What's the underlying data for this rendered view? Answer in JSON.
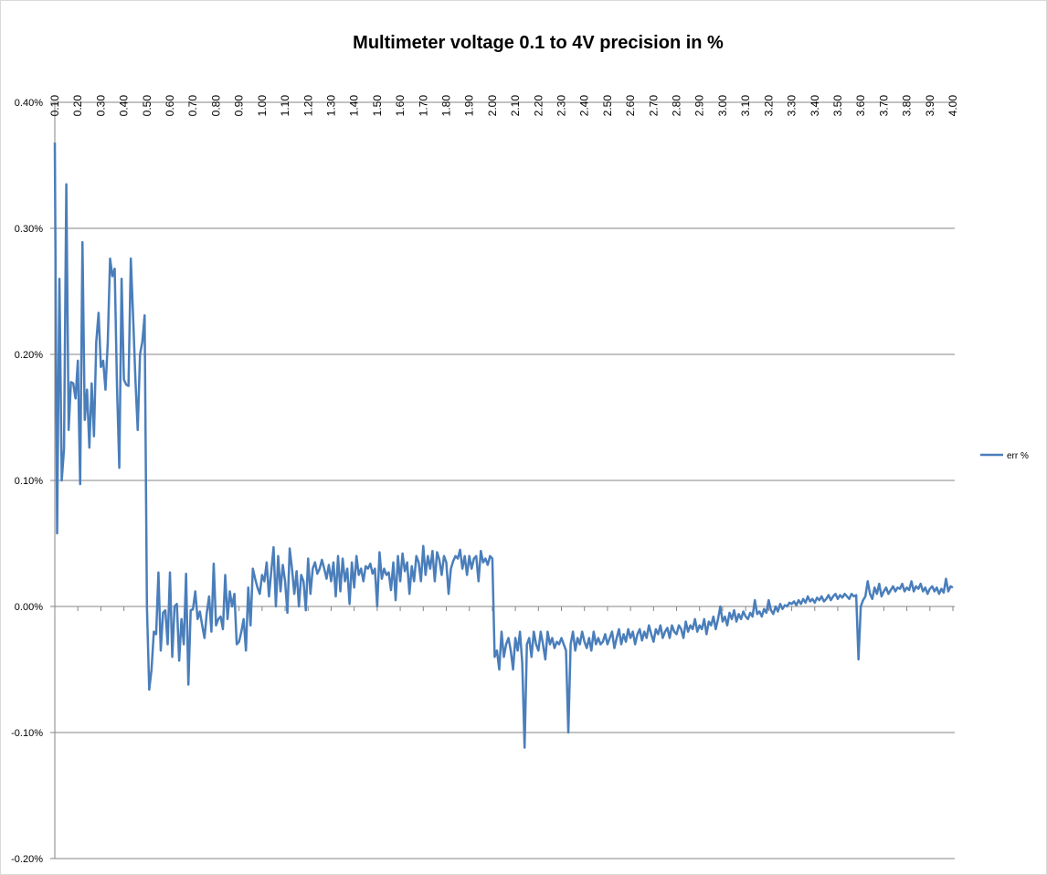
{
  "chart_data": {
    "type": "line",
    "title": "Multimeter voltage 0.1 to 4V precision in %",
    "categories": [
      "0.10",
      null,
      null,
      null,
      null,
      null,
      null,
      null,
      null,
      null,
      "0.20",
      null,
      null,
      null,
      null,
      null,
      null,
      null,
      null,
      null,
      "0.30",
      null,
      null,
      null,
      null,
      null,
      null,
      null,
      null,
      null,
      "0.40",
      null,
      null,
      null,
      null,
      null,
      null,
      null,
      null,
      null,
      "0.50",
      null,
      null,
      null,
      null,
      null,
      null,
      null,
      null,
      null,
      "0.60",
      null,
      null,
      null,
      null,
      null,
      null,
      null,
      null,
      null,
      "0.70",
      null,
      null,
      null,
      null,
      null,
      null,
      null,
      null,
      null,
      "0.80",
      null,
      null,
      null,
      null,
      null,
      null,
      null,
      null,
      null,
      "0.90",
      null,
      null,
      null,
      null,
      null,
      null,
      null,
      null,
      null,
      "1.00",
      null,
      null,
      null,
      null,
      null,
      null,
      null,
      null,
      null,
      "1.10",
      null,
      null,
      null,
      null,
      null,
      null,
      null,
      null,
      null,
      "1.20",
      null,
      null,
      null,
      null,
      null,
      null,
      null,
      null,
      null,
      "1.30",
      null,
      null,
      null,
      null,
      null,
      null,
      null,
      null,
      null,
      "1.40",
      null,
      null,
      null,
      null,
      null,
      null,
      null,
      null,
      null,
      "1.50",
      null,
      null,
      null,
      null,
      null,
      null,
      null,
      null,
      null,
      "1.60",
      null,
      null,
      null,
      null,
      null,
      null,
      null,
      null,
      null,
      "1.70",
      null,
      null,
      null,
      null,
      null,
      null,
      null,
      null,
      null,
      "1.80",
      null,
      null,
      null,
      null,
      null,
      null,
      null,
      null,
      null,
      "1.90",
      null,
      null,
      null,
      null,
      null,
      null,
      null,
      null,
      null,
      "2.00",
      null,
      null,
      null,
      null,
      null,
      null,
      null,
      null,
      null,
      "2.10",
      null,
      null,
      null,
      null,
      null,
      null,
      null,
      null,
      null,
      "2.20",
      null,
      null,
      null,
      null,
      null,
      null,
      null,
      null,
      null,
      "2.30",
      null,
      null,
      null,
      null,
      null,
      null,
      null,
      null,
      null,
      "2.40",
      null,
      null,
      null,
      null,
      null,
      null,
      null,
      null,
      null,
      "2.50",
      null,
      null,
      null,
      null,
      null,
      null,
      null,
      null,
      null,
      "2.60",
      null,
      null,
      null,
      null,
      null,
      null,
      null,
      null,
      null,
      "2.70",
      null,
      null,
      null,
      null,
      null,
      null,
      null,
      null,
      null,
      "2.80",
      null,
      null,
      null,
      null,
      null,
      null,
      null,
      null,
      null,
      "2.90",
      null,
      null,
      null,
      null,
      null,
      null,
      null,
      null,
      null,
      "3.00",
      null,
      null,
      null,
      null,
      null,
      null,
      null,
      null,
      null,
      "3.10",
      null,
      null,
      null,
      null,
      null,
      null,
      null,
      null,
      null,
      "3.20",
      null,
      null,
      null,
      null,
      null,
      null,
      null,
      null,
      null,
      "3.30",
      null,
      null,
      null,
      null,
      null,
      null,
      null,
      null,
      null,
      "3.40",
      null,
      null,
      null,
      null,
      null,
      null,
      null,
      null,
      null,
      "3.50",
      null,
      null,
      null,
      null,
      null,
      null,
      null,
      null,
      null,
      "3.60",
      null,
      null,
      null,
      null,
      null,
      null,
      null,
      null,
      null,
      "3.70",
      null,
      null,
      null,
      null,
      null,
      null,
      null,
      null,
      null,
      "3.80",
      null,
      null,
      null,
      null,
      null,
      null,
      null,
      null,
      null,
      "3.90",
      null,
      null,
      null,
      null,
      null,
      null,
      null,
      null,
      null,
      "4.00"
    ],
    "series": [
      {
        "name": "err %",
        "color": "#4a7ebb",
        "values": [
          0.368,
          0.058,
          0.26,
          0.1,
          0.125,
          0.335,
          0.14,
          0.178,
          0.177,
          0.165,
          0.195,
          0.097,
          0.289,
          0.148,
          0.172,
          0.126,
          0.177,
          0.135,
          0.21,
          0.233,
          0.19,
          0.195,
          0.172,
          0.21,
          0.276,
          0.262,
          0.268,
          0.175,
          0.11,
          0.26,
          0.18,
          0.176,
          0.175,
          0.276,
          0.23,
          0.18,
          0.14,
          0.2,
          0.21,
          0.231,
          0.0,
          -0.066,
          -0.05,
          -0.02,
          -0.022,
          0.027,
          -0.035,
          -0.005,
          -0.003,
          -0.03,
          0.027,
          -0.04,
          0.0,
          0.002,
          -0.043,
          -0.01,
          -0.03,
          0.026,
          -0.062,
          -0.003,
          -0.002,
          0.012,
          -0.01,
          -0.004,
          -0.015,
          -0.025,
          -0.005,
          0.008,
          -0.02,
          0.034,
          -0.015,
          -0.01,
          -0.008,
          -0.018,
          0.025,
          -0.01,
          0.012,
          0.0,
          0.01,
          -0.03,
          -0.028,
          -0.02,
          -0.01,
          -0.035,
          0.015,
          -0.015,
          0.03,
          0.022,
          0.015,
          0.01,
          0.025,
          0.02,
          0.035,
          0.008,
          0.028,
          0.047,
          0.0,
          0.04,
          0.012,
          0.033,
          0.02,
          -0.005,
          0.046,
          0.03,
          0.01,
          0.028,
          0.0,
          0.025,
          0.02,
          -0.003,
          0.038,
          0.01,
          0.03,
          0.035,
          0.026,
          0.03,
          0.037,
          0.03,
          0.022,
          0.033,
          0.02,
          0.035,
          0.008,
          0.04,
          0.012,
          0.038,
          0.02,
          0.03,
          0.002,
          0.035,
          0.015,
          0.04,
          0.025,
          0.03,
          0.02,
          0.032,
          0.03,
          0.034,
          0.026,
          0.03,
          0.0,
          0.043,
          0.022,
          0.03,
          0.025,
          0.027,
          0.013,
          0.035,
          0.005,
          0.04,
          0.02,
          0.042,
          0.028,
          0.035,
          0.01,
          0.032,
          0.02,
          0.04,
          0.035,
          0.02,
          0.048,
          0.025,
          0.04,
          0.03,
          0.044,
          0.02,
          0.043,
          0.037,
          0.025,
          0.04,
          0.035,
          0.01,
          0.03,
          0.036,
          0.04,
          0.038,
          0.045,
          0.03,
          0.04,
          0.025,
          0.04,
          0.03,
          0.038,
          0.04,
          0.02,
          0.044,
          0.035,
          0.038,
          0.033,
          0.04,
          0.038,
          -0.04,
          -0.035,
          -0.05,
          -0.02,
          -0.04,
          -0.03,
          -0.025,
          -0.035,
          -0.05,
          -0.025,
          -0.035,
          -0.02,
          -0.045,
          -0.112,
          -0.03,
          -0.025,
          -0.04,
          -0.02,
          -0.03,
          -0.035,
          -0.02,
          -0.03,
          -0.042,
          -0.02,
          -0.03,
          -0.025,
          -0.033,
          -0.028,
          -0.03,
          -0.025,
          -0.03,
          -0.035,
          -0.1,
          -0.03,
          -0.02,
          -0.035,
          -0.025,
          -0.03,
          -0.02,
          -0.028,
          -0.033,
          -0.025,
          -0.035,
          -0.02,
          -0.03,
          -0.025,
          -0.03,
          -0.028,
          -0.022,
          -0.03,
          -0.025,
          -0.02,
          -0.033,
          -0.025,
          -0.018,
          -0.03,
          -0.022,
          -0.028,
          -0.018,
          -0.025,
          -0.02,
          -0.03,
          -0.022,
          -0.018,
          -0.027,
          -0.02,
          -0.025,
          -0.015,
          -0.022,
          -0.028,
          -0.018,
          -0.022,
          -0.015,
          -0.025,
          -0.02,
          -0.017,
          -0.025,
          -0.015,
          -0.02,
          -0.022,
          -0.015,
          -0.018,
          -0.025,
          -0.012,
          -0.02,
          -0.015,
          -0.018,
          -0.01,
          -0.02,
          -0.015,
          -0.018,
          -0.01,
          -0.022,
          -0.012,
          -0.015,
          -0.008,
          -0.018,
          -0.01,
          0.0,
          -0.012,
          -0.008,
          -0.015,
          -0.005,
          -0.01,
          -0.003,
          -0.012,
          -0.006,
          -0.01,
          -0.004,
          -0.008,
          -0.01,
          -0.005,
          -0.008,
          0.005,
          -0.006,
          -0.004,
          -0.008,
          -0.002,
          -0.005,
          0.005,
          -0.003,
          -0.006,
          0.0,
          -0.004,
          0.002,
          -0.002,
          0.001,
          0.0,
          0.003,
          0.002,
          0.004,
          0.001,
          0.005,
          0.002,
          0.006,
          0.003,
          0.008,
          0.004,
          0.006,
          0.003,
          0.007,
          0.005,
          0.008,
          0.004,
          0.006,
          0.009,
          0.005,
          0.008,
          0.01,
          0.006,
          0.009,
          0.007,
          0.01,
          0.008,
          0.006,
          0.01,
          0.008,
          0.009,
          -0.042,
          0.0,
          0.005,
          0.008,
          0.02,
          0.01,
          0.006,
          0.015,
          0.01,
          0.018,
          0.008,
          0.012,
          0.015,
          0.01,
          0.013,
          0.016,
          0.012,
          0.015,
          0.014,
          0.018,
          0.012,
          0.015,
          0.013,
          0.02,
          0.012,
          0.016,
          0.014,
          0.018,
          0.012,
          0.015,
          0.01,
          0.014,
          0.016,
          0.012,
          0.015,
          0.01,
          0.014,
          0.011,
          0.022,
          0.012,
          0.016,
          0.015
        ]
      }
    ],
    "ylim": [
      -0.2,
      0.4
    ],
    "yticks": [
      {
        "value": -0.2,
        "label": "-0.20%"
      },
      {
        "value": -0.1,
        "label": "-0.10%"
      },
      {
        "value": 0,
        "label": "0.00%"
      },
      {
        "value": 0.1,
        "label": "0.10%"
      },
      {
        "value": 0.2,
        "label": "0.20%"
      },
      {
        "value": 0.3,
        "label": "0.30%"
      },
      {
        "value": 0.4,
        "label": "0.40%"
      }
    ],
    "grid": true,
    "legend": "right"
  }
}
